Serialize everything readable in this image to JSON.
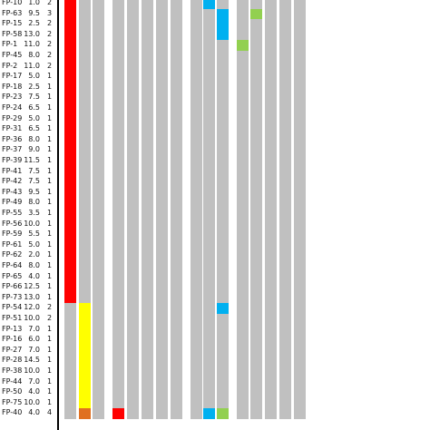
{
  "rows": [
    {
      "id": "FP-10",
      "value": "1.0",
      "count": "2"
    },
    {
      "id": "FP-63",
      "value": "9.5",
      "count": "3"
    },
    {
      "id": "FP-15",
      "value": "2.5",
      "count": "2"
    },
    {
      "id": "FP-58",
      "value": "13.0",
      "count": "2"
    },
    {
      "id": "FP-1",
      "value": "11.0",
      "count": "2"
    },
    {
      "id": "FP-45",
      "value": "8.0",
      "count": "2"
    },
    {
      "id": "FP-2",
      "value": "11.0",
      "count": "2"
    },
    {
      "id": "FP-17",
      "value": "5.0",
      "count": "1"
    },
    {
      "id": "FP-18",
      "value": "2.5",
      "count": "1"
    },
    {
      "id": "FP-23",
      "value": "7.5",
      "count": "1"
    },
    {
      "id": "FP-24",
      "value": "6.5",
      "count": "1"
    },
    {
      "id": "FP-29",
      "value": "5.0",
      "count": "1"
    },
    {
      "id": "FP-31",
      "value": "6.5",
      "count": "1"
    },
    {
      "id": "FP-36",
      "value": "8.0",
      "count": "1"
    },
    {
      "id": "FP-37",
      "value": "9.0",
      "count": "1"
    },
    {
      "id": "FP-39",
      "value": "11.5",
      "count": "1"
    },
    {
      "id": "FP-41",
      "value": "7.5",
      "count": "1"
    },
    {
      "id": "FP-42",
      "value": "7.5",
      "count": "1"
    },
    {
      "id": "FP-43",
      "value": "9.5",
      "count": "1"
    },
    {
      "id": "FP-49",
      "value": "8.0",
      "count": "1"
    },
    {
      "id": "FP-55",
      "value": "3.5",
      "count": "1"
    },
    {
      "id": "FP-56",
      "value": "10.0",
      "count": "1"
    },
    {
      "id": "FP-59",
      "value": "5.5",
      "count": "1"
    },
    {
      "id": "FP-61",
      "value": "5.0",
      "count": "1"
    },
    {
      "id": "FP-62",
      "value": "2.0",
      "count": "1"
    },
    {
      "id": "FP-64",
      "value": "8.0",
      "count": "1"
    },
    {
      "id": "FP-65",
      "value": "4.0",
      "count": "1"
    },
    {
      "id": "FP-66",
      "value": "12.5",
      "count": "1"
    },
    {
      "id": "FP-73",
      "value": "13.0",
      "count": "1"
    },
    {
      "id": "FP-54",
      "value": "12.0",
      "count": "2"
    },
    {
      "id": "FP-51",
      "value": "10.0",
      "count": "2"
    },
    {
      "id": "FP-13",
      "value": "7.0",
      "count": "1"
    },
    {
      "id": "FP-16",
      "value": "6.0",
      "count": "1"
    },
    {
      "id": "FP-27",
      "value": "7.0",
      "count": "1"
    },
    {
      "id": "FP-28",
      "value": "14.5",
      "count": "1"
    },
    {
      "id": "FP-38",
      "value": "10.0",
      "count": "1"
    },
    {
      "id": "FP-44",
      "value": "7.0",
      "count": "1"
    },
    {
      "id": "FP-50",
      "value": "4.0",
      "count": "1"
    },
    {
      "id": "FP-75",
      "value": "10.0",
      "count": "1"
    },
    {
      "id": "FP-40",
      "value": "4.0",
      "count": "4"
    }
  ],
  "colors": {
    "grey": "#c0c0c0",
    "red": "#ff0000",
    "yellow": "#ffff00",
    "orange": "#e07020",
    "blue": "#00b0f0",
    "green": "#92d050"
  },
  "colored_cells": [
    {
      "row": 0,
      "col": 0,
      "color": "red"
    },
    {
      "row": 1,
      "col": 0,
      "color": "red"
    },
    {
      "row": 2,
      "col": 0,
      "color": "red"
    },
    {
      "row": 3,
      "col": 0,
      "color": "red"
    },
    {
      "row": 4,
      "col": 0,
      "color": "red"
    },
    {
      "row": 5,
      "col": 0,
      "color": "red"
    },
    {
      "row": 6,
      "col": 0,
      "color": "red"
    },
    {
      "row": 7,
      "col": 0,
      "color": "red"
    },
    {
      "row": 8,
      "col": 0,
      "color": "red"
    },
    {
      "row": 9,
      "col": 0,
      "color": "red"
    },
    {
      "row": 10,
      "col": 0,
      "color": "red"
    },
    {
      "row": 11,
      "col": 0,
      "color": "red"
    },
    {
      "row": 12,
      "col": 0,
      "color": "red"
    },
    {
      "row": 13,
      "col": 0,
      "color": "red"
    },
    {
      "row": 14,
      "col": 0,
      "color": "red"
    },
    {
      "row": 15,
      "col": 0,
      "color": "red"
    },
    {
      "row": 16,
      "col": 0,
      "color": "red"
    },
    {
      "row": 17,
      "col": 0,
      "color": "red"
    },
    {
      "row": 18,
      "col": 0,
      "color": "red"
    },
    {
      "row": 19,
      "col": 0,
      "color": "red"
    },
    {
      "row": 20,
      "col": 0,
      "color": "red"
    },
    {
      "row": 21,
      "col": 0,
      "color": "red"
    },
    {
      "row": 22,
      "col": 0,
      "color": "red"
    },
    {
      "row": 23,
      "col": 0,
      "color": "red"
    },
    {
      "row": 24,
      "col": 0,
      "color": "red"
    },
    {
      "row": 25,
      "col": 0,
      "color": "red"
    },
    {
      "row": 26,
      "col": 0,
      "color": "red"
    },
    {
      "row": 27,
      "col": 0,
      "color": "red"
    },
    {
      "row": 28,
      "col": 0,
      "color": "red"
    },
    {
      "row": 29,
      "col": 1,
      "color": "yellow"
    },
    {
      "row": 30,
      "col": 1,
      "color": "yellow"
    },
    {
      "row": 31,
      "col": 1,
      "color": "yellow"
    },
    {
      "row": 32,
      "col": 1,
      "color": "yellow"
    },
    {
      "row": 33,
      "col": 1,
      "color": "yellow"
    },
    {
      "row": 34,
      "col": 1,
      "color": "yellow"
    },
    {
      "row": 35,
      "col": 1,
      "color": "yellow"
    },
    {
      "row": 36,
      "col": 1,
      "color": "yellow"
    },
    {
      "row": 37,
      "col": 1,
      "color": "yellow"
    },
    {
      "row": 38,
      "col": 1,
      "color": "yellow"
    },
    {
      "row": 39,
      "col": 1,
      "color": "orange"
    },
    {
      "row": 39,
      "col": 3,
      "color": "red"
    },
    {
      "row": 0,
      "col": 9,
      "color": "blue"
    },
    {
      "row": 1,
      "col": 10,
      "color": "blue"
    },
    {
      "row": 2,
      "col": 10,
      "color": "blue"
    },
    {
      "row": 3,
      "col": 10,
      "color": "blue"
    },
    {
      "row": 29,
      "col": 10,
      "color": "blue"
    },
    {
      "row": 1,
      "col": 12,
      "color": "green"
    },
    {
      "row": 4,
      "col": 11,
      "color": "green"
    },
    {
      "row": 39,
      "col": 9,
      "color": "blue"
    },
    {
      "row": 39,
      "col": 10,
      "color": "green"
    }
  ]
}
